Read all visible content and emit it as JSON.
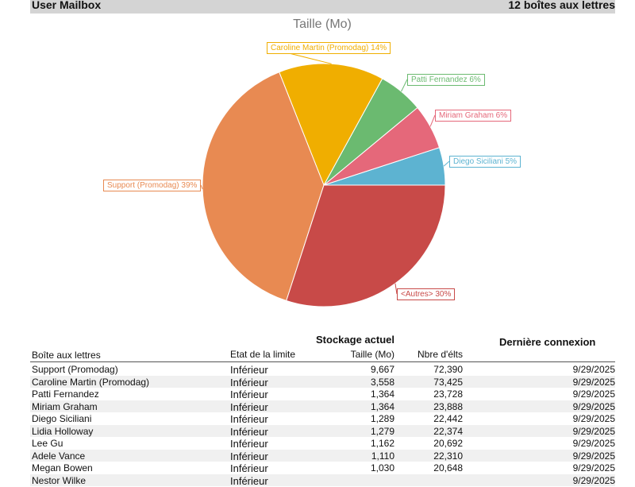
{
  "header": {
    "title": "User Mailbox",
    "count": "12 boîtes aux lettres"
  },
  "chart_data": {
    "type": "pie",
    "title": "Taille (Mo)",
    "slices": [
      {
        "name": "Diego Siciliani",
        "percent": 5,
        "label": "Diego Siciliani 5%",
        "color": "#5db3d1"
      },
      {
        "name": "Miriam Graham",
        "percent": 6,
        "label": "Miriam Graham 6%",
        "color": "#e5687a"
      },
      {
        "name": "Patti Fernandez",
        "percent": 6,
        "label": "Patti Fernandez 6%",
        "color": "#6bba70"
      },
      {
        "name": "Caroline Martin (Promodag)",
        "percent": 14,
        "label": "Caroline Martin (Promodag) 14%",
        "color": "#f0ae00"
      },
      {
        "name": "Support (Promodag)",
        "percent": 39,
        "label": "Support (Promodag) 39%",
        "color": "#e88a52"
      },
      {
        "name": "<Autres>",
        "percent": 30,
        "label": "<Autres> 30%",
        "color": "#c84a48"
      }
    ]
  },
  "table": {
    "group_storage": "Stockage actuel",
    "group_login": "Dernière connexion",
    "columns": [
      "Boîte aux lettres",
      "Etat de la limite",
      "Taille (Mo)",
      "Nbre d'élts"
    ],
    "rows": [
      [
        "Support (Promodag)",
        "Inférieur",
        "9,667",
        "72,390",
        "9/29/2025"
      ],
      [
        "Caroline Martin (Promodag)",
        "Inférieur",
        "3,558",
        "73,425",
        "9/29/2025"
      ],
      [
        "Patti Fernandez",
        "Inférieur",
        "1,364",
        "23,728",
        "9/29/2025"
      ],
      [
        "Miriam Graham",
        "Inférieur",
        "1,364",
        "23,888",
        "9/29/2025"
      ],
      [
        "Diego Siciliani",
        "Inférieur",
        "1,289",
        "22,442",
        "9/29/2025"
      ],
      [
        "Lidia Holloway",
        "Inférieur",
        "1,279",
        "22,374",
        "9/29/2025"
      ],
      [
        "Lee Gu",
        "Inférieur",
        "1,162",
        "20,692",
        "9/29/2025"
      ],
      [
        "Adele Vance",
        "Inférieur",
        "1,110",
        "22,310",
        "9/29/2025"
      ],
      [
        "Megan Bowen",
        "Inférieur",
        "1,030",
        "20,648",
        "9/29/2025"
      ],
      [
        "Nestor Wilke",
        "Inférieur",
        "",
        "",
        "9/29/2025"
      ]
    ]
  }
}
